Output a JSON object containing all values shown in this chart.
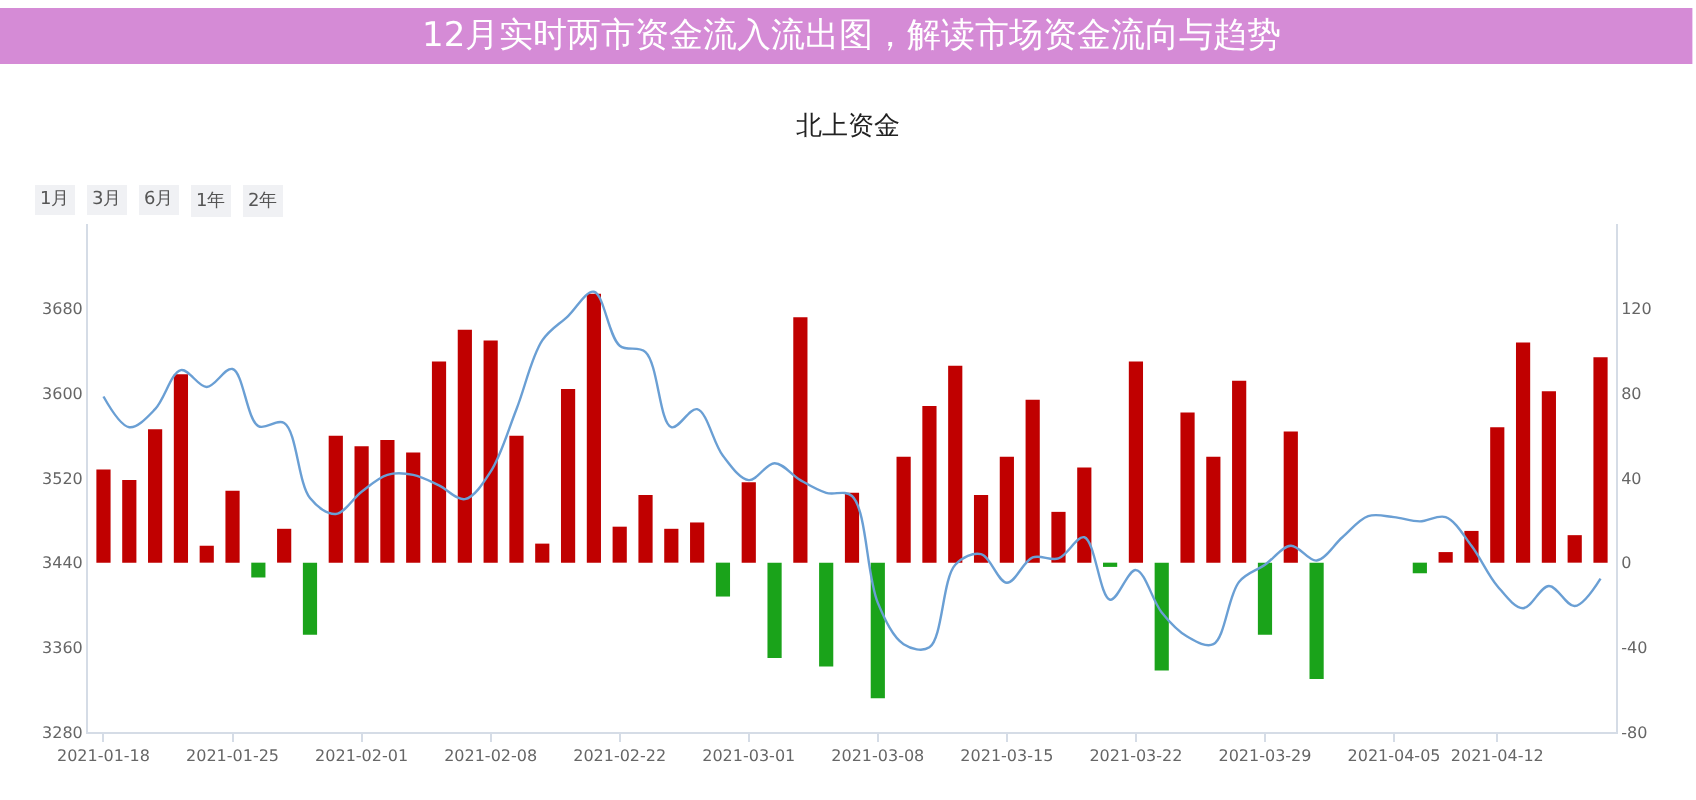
{
  "chart_data": {
    "type": "bar",
    "title": "北上资金",
    "subtitle": "12月实时两市资金流入流出图，解读市场资金流向与趋势",
    "annotations": [
      "1月",
      "3月",
      "6月",
      "1年",
      "2年"
    ],
    "categories": [
      "2021-01-18",
      null,
      null,
      null,
      null,
      "2021-01-25",
      null,
      null,
      null,
      null,
      "2021-02-01",
      null,
      null,
      null,
      null,
      "2021-02-08",
      null,
      null,
      null,
      null,
      "2021-02-22",
      null,
      null,
      null,
      null,
      "2021-03-01",
      null,
      null,
      null,
      null,
      "2021-03-08",
      null,
      null,
      null,
      null,
      "2021-03-15",
      null,
      null,
      null,
      null,
      "2021-03-22",
      null,
      null,
      null,
      null,
      "2021-03-29",
      null,
      null,
      null,
      null,
      "2021-04-05",
      null,
      null,
      null,
      "2021-04-12",
      null,
      null,
      null,
      null
    ],
    "series": [
      {
        "axis": "y2",
        "colors": [
          "#c00000",
          "#c00000",
          "#c00000",
          "#c00000",
          "#c00000",
          "#c00000",
          "#1aa31a",
          "#c00000",
          "#1aa31a",
          "#c00000",
          "#c00000",
          "#c00000",
          "#c00000",
          "#c00000",
          "#c00000",
          "#c00000",
          "#c00000",
          "#c00000",
          "#c00000",
          "#c00000",
          "#c00000",
          "#c00000",
          "#c00000",
          "#c00000",
          "#1aa31a",
          "#c00000",
          "#1aa31a",
          "#c00000",
          "#1aa31a",
          "#c00000",
          "#1aa31a",
          "#c00000",
          "#c00000",
          "#c00000",
          "#c00000",
          "#c00000",
          "#c00000",
          "#c00000",
          "#c00000",
          "#1aa31a",
          "#c00000",
          "#1aa31a",
          "#c00000",
          "#c00000",
          "#c00000",
          "#1aa31a",
          "#c00000",
          "#1aa31a",
          null,
          null,
          null,
          "#1aa31a",
          "#c00000",
          "#c00000",
          "#c00000",
          "#c00000",
          "#c00000",
          "#c00000",
          "#c00000"
        ],
        "values": [
          44,
          39,
          63,
          89,
          8,
          34,
          -7,
          16,
          -34,
          60,
          55,
          58,
          52,
          95,
          110,
          105,
          60,
          9,
          82,
          127,
          17,
          32,
          16,
          19,
          -16,
          38,
          -45,
          116,
          -49,
          33,
          -64,
          50,
          74,
          93,
          32,
          50,
          77,
          24,
          45,
          -2,
          95,
          -51,
          71,
          50,
          86,
          -34,
          62,
          -55,
          null,
          null,
          null,
          -5,
          5,
          15,
          64,
          104,
          81,
          13,
          97
        ]
      },
      {
        "type": "line",
        "axis": "y",
        "color": "#6a9fd4",
        "marker": "none",
        "values": [
          3597,
          3568,
          3585,
          3622,
          3606,
          3623,
          3569,
          3572,
          3501,
          3486,
          3507,
          3523,
          3523,
          3513,
          3500,
          3526,
          3585,
          3650,
          3673,
          3696,
          3645,
          3639,
          3568,
          3585,
          3541,
          3518,
          3534,
          3518,
          3506,
          3503,
          3402,
          3363,
          3360,
          3438,
          3448,
          3421,
          3445,
          3444,
          3464,
          3405,
          3433,
          3393,
          3370,
          3363,
          3422,
          3438,
          3456,
          3442,
          3464,
          3484,
          3483,
          3479,
          3483,
          3456,
          3418,
          3397,
          3418,
          3399,
          3425
        ]
      }
    ],
    "ylim": [
      3280,
      3760
    ],
    "yticks": [
      3280,
      3360,
      3440,
      3520,
      3600,
      3680
    ],
    "y2lim": [
      -80,
      160
    ],
    "y2ticks": [
      -80,
      -40,
      0,
      40,
      80,
      120
    ]
  }
}
